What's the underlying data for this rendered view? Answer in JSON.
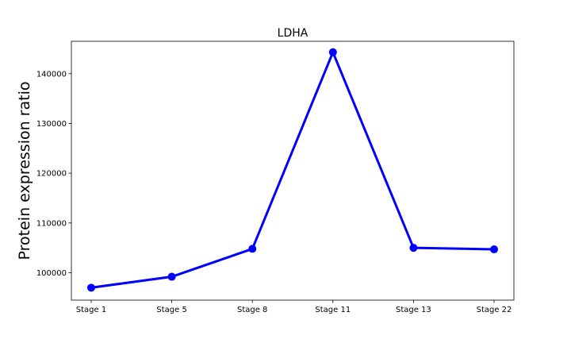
{
  "chart_data": {
    "type": "line",
    "title": "LDHA",
    "xlabel": "",
    "ylabel": "Protein expression ratio",
    "categories": [
      "Stage 1",
      "Stage 5",
      "Stage 8",
      "Stage 11",
      "Stage 13",
      "Stage 22"
    ],
    "series": [
      {
        "values": [
          97000,
          99200,
          104800,
          144300,
          105000,
          104700
        ],
        "color": "#0000ff",
        "marker": "circle"
      }
    ],
    "ylim": [
      94500,
      146500
    ],
    "yticks": [
      100000,
      110000,
      120000,
      130000,
      140000
    ],
    "ytick_labels": [
      "100000",
      "110000",
      "120000",
      "130000",
      "140000"
    ],
    "grid": false,
    "legend": "none"
  }
}
